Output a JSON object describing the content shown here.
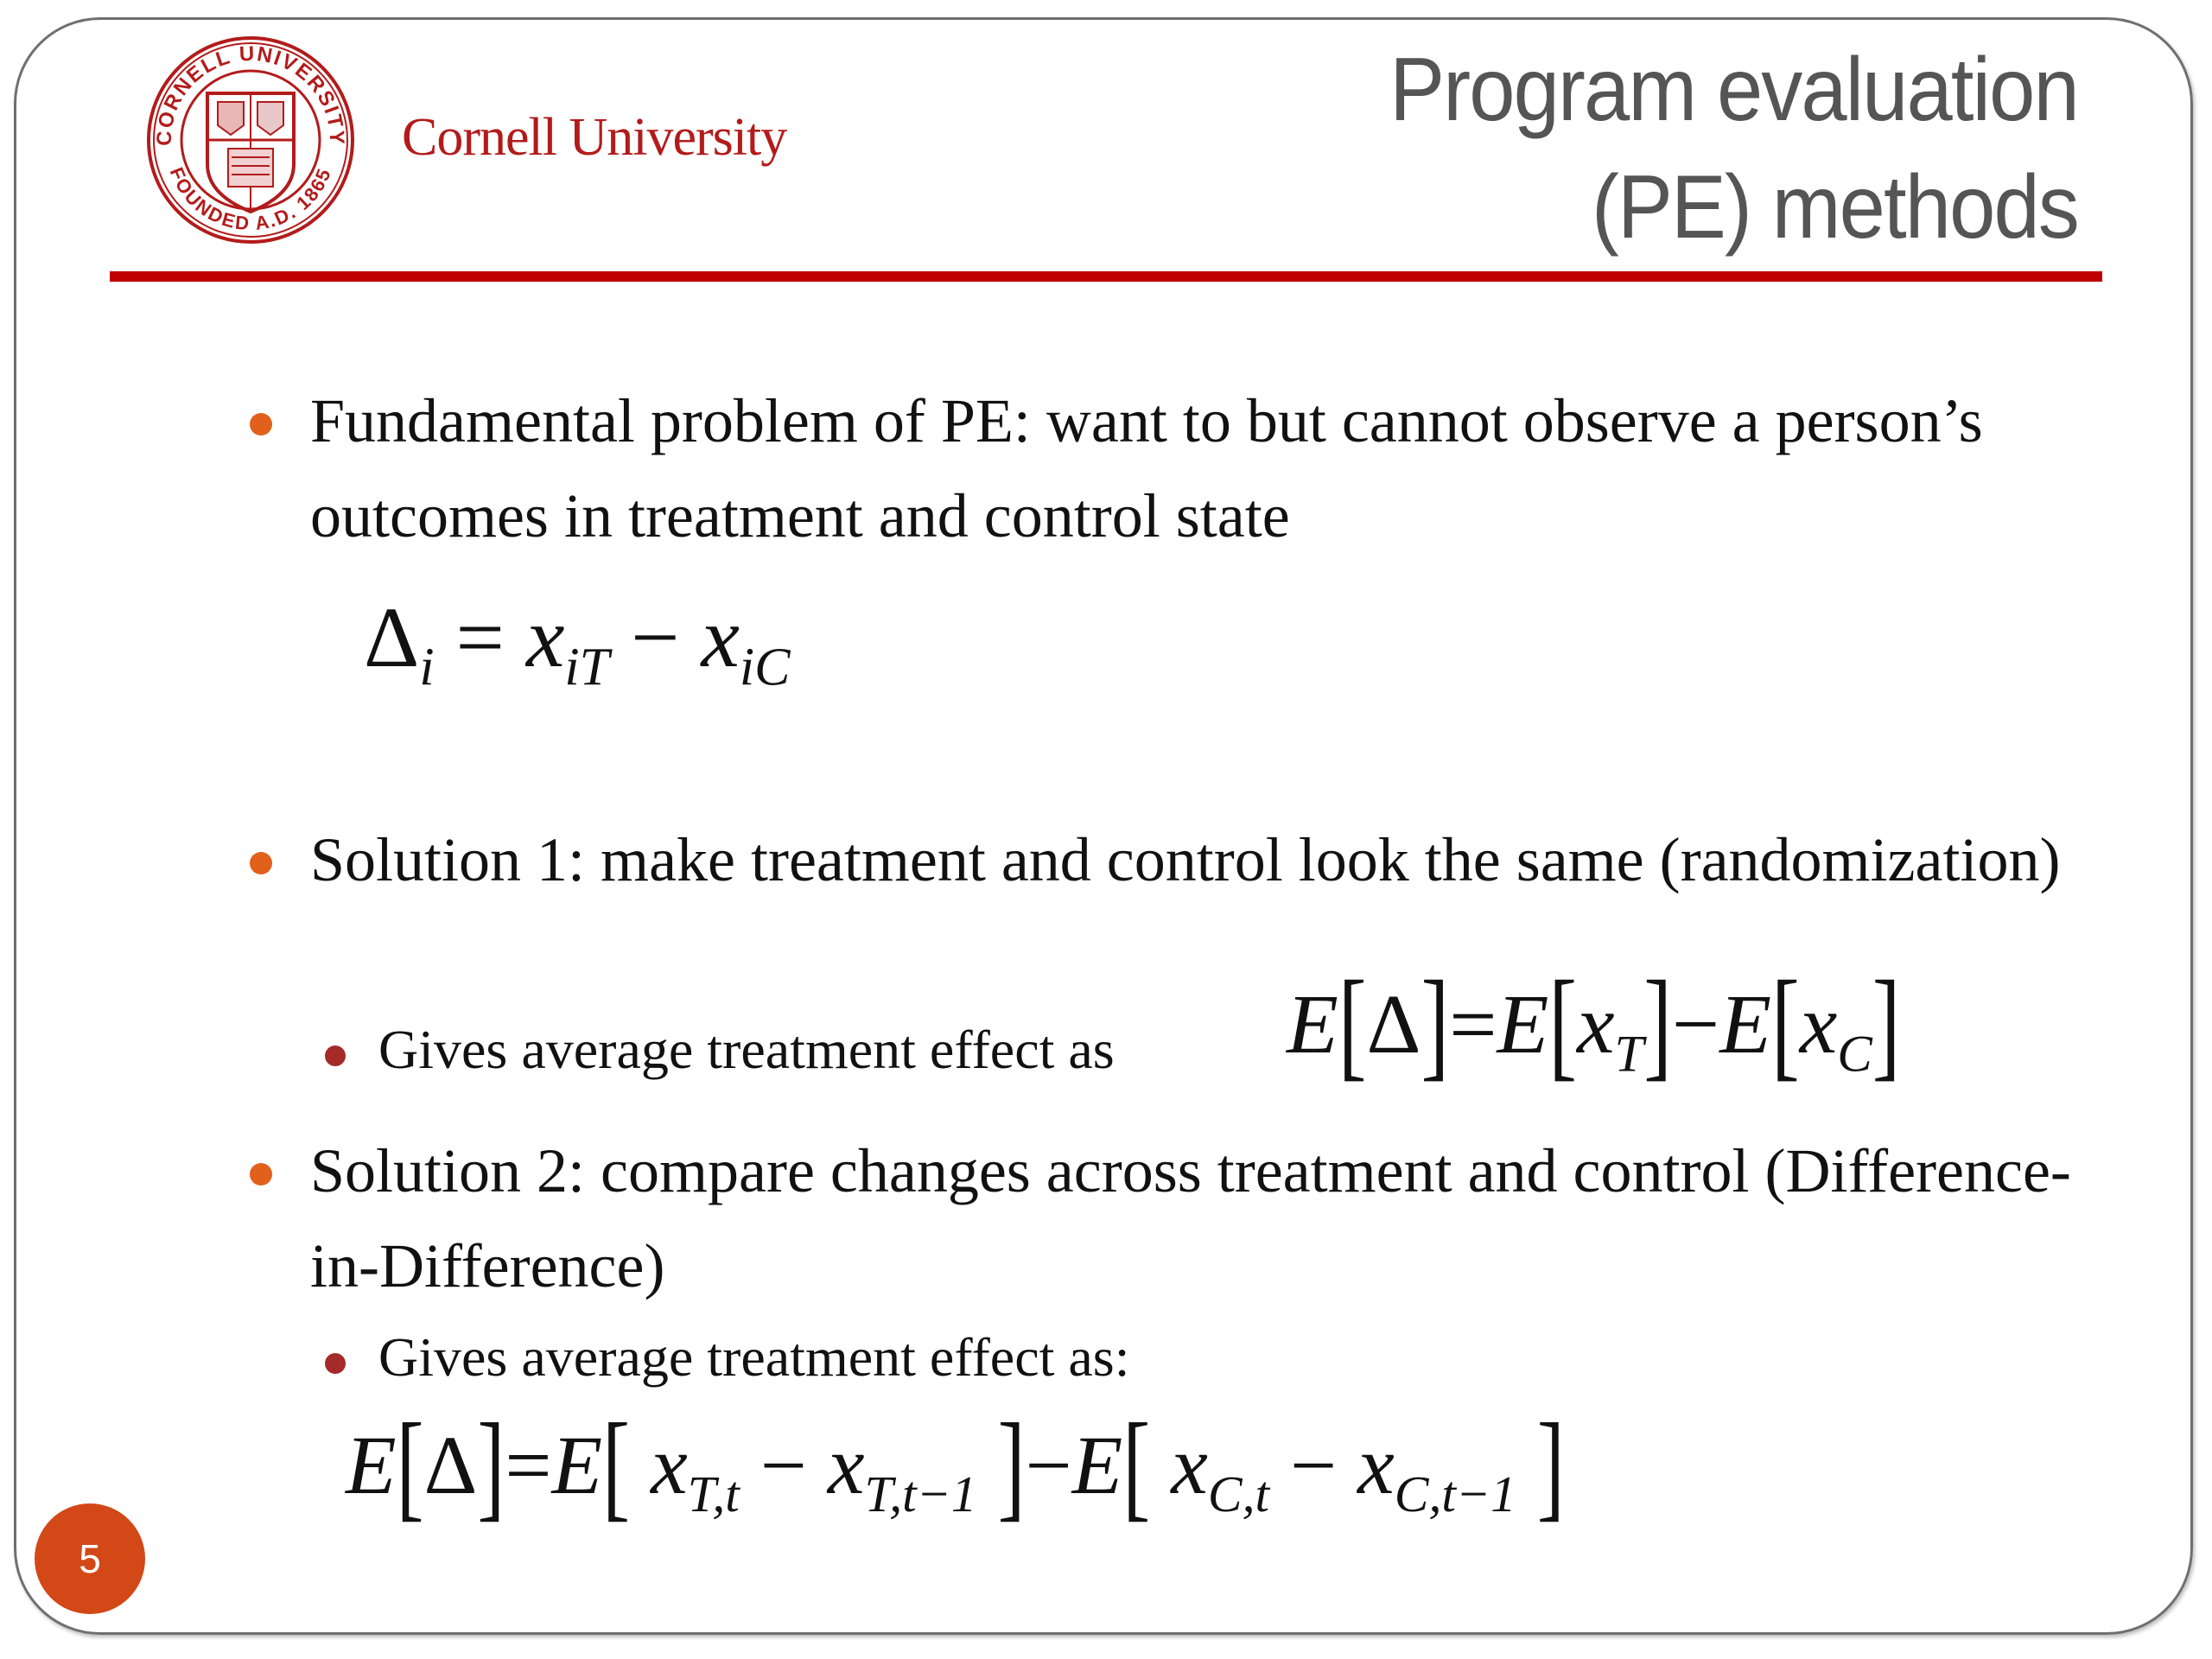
{
  "header": {
    "logo": {
      "seal_top_text": "CORNELL UNIVERSITY",
      "seal_bottom_text": "FOUNDED A.D. 1865",
      "icon": "cornell-seal"
    },
    "brand": "Cornell University",
    "title_line1": "Program evaluation",
    "title_line2": "(PE) methods"
  },
  "colors": {
    "accent_rule": "#c00000",
    "brand": "#b31b1b",
    "bullet_level1": "#e0601c",
    "bullet_level2": "#a52a2a",
    "page_badge": "#d34817",
    "title": "#555555"
  },
  "body": {
    "bullet1": "Fundamental problem of PE: want to but cannot observe a person’s outcomes in treatment and control state",
    "formula1": {
      "lhs": "Δ",
      "lhs_sub": "i",
      "eq": "=",
      "x1": "x",
      "x1_sub": "iT",
      "minus": "−",
      "x2": "x",
      "x2_sub": "iC"
    },
    "bullet2": "Solution 1: make treatment and control look the same (randomization)",
    "bullet2_sub": "Gives average treatment effect as",
    "formula2": {
      "E": "E",
      "delta": "Δ",
      "eq": "=",
      "x": "x",
      "subT": "T",
      "minus": "−",
      "subC": "C",
      "lb": "[",
      "rb": "]"
    },
    "bullet3": "Solution 2: compare changes across treatment and control (Difference-in-Difference)",
    "bullet3_sub": "Gives average treatment effect as:",
    "formula3": {
      "E": "E",
      "delta": "Δ",
      "eq": "=",
      "x": "x",
      "subTt": "T,t",
      "subTt1": "T,t−1",
      "subCt": "C,t",
      "subCt1": "C,t−1",
      "minus": "−",
      "lb": "[",
      "rb": "]"
    }
  },
  "footer": {
    "page_number": "5"
  }
}
